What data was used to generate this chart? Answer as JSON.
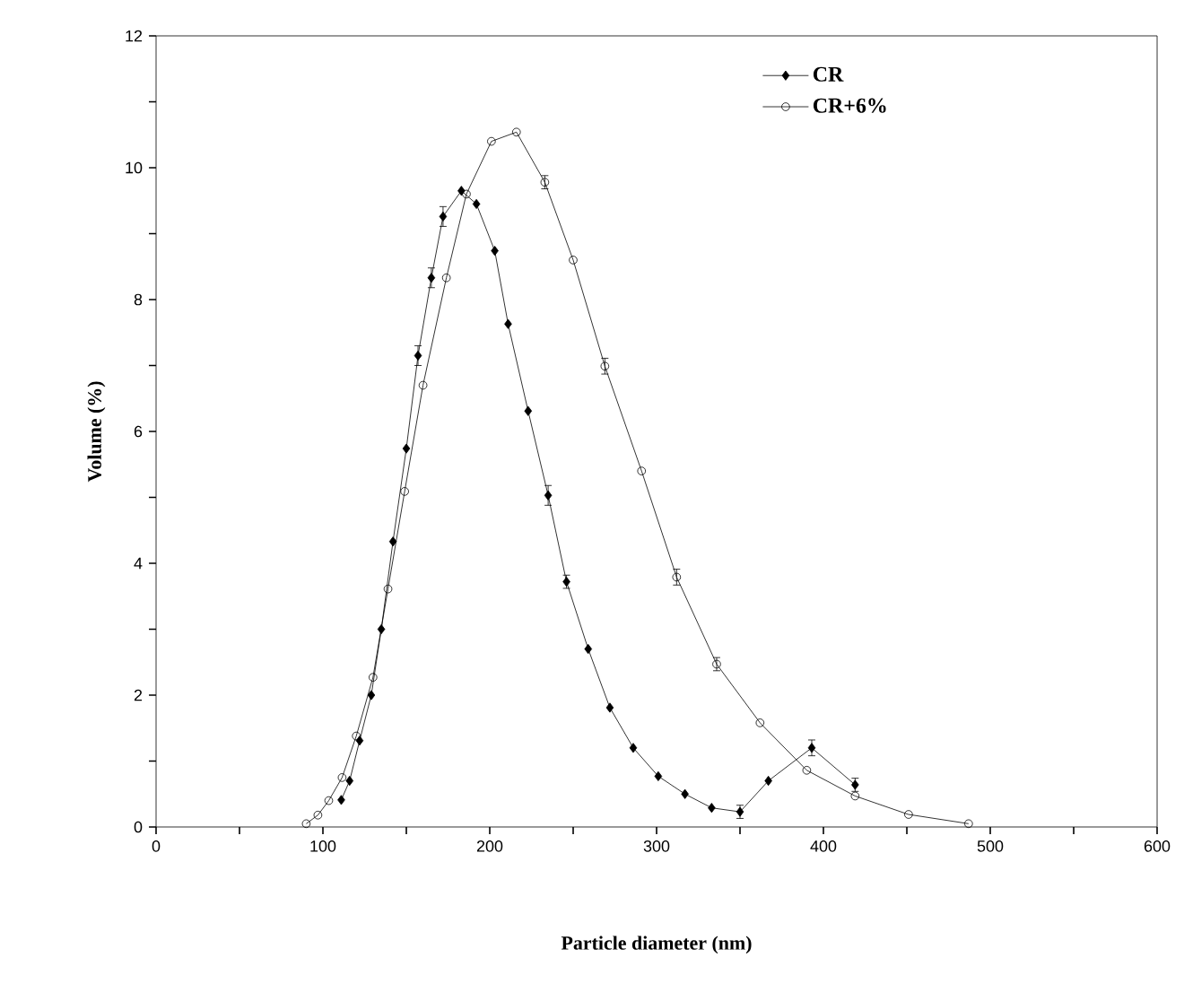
{
  "chart_data": {
    "type": "line",
    "xlabel": "Particle diameter (nm)",
    "ylabel": "Volume (%)",
    "xlim": [
      0,
      600
    ],
    "ylim": [
      0,
      12
    ],
    "xticks": [
      0,
      {
        "value": 50,
        "label": null
      },
      100,
      {
        "value": 150,
        "label": null
      },
      200,
      {
        "value": 250,
        "label": null
      },
      300,
      {
        "value": 350,
        "label": null
      },
      400,
      {
        "value": 450,
        "label": null
      },
      500,
      {
        "value": 550,
        "label": null
      },
      600
    ],
    "yticks": [
      0,
      {
        "value": 1,
        "label": null
      },
      2,
      {
        "value": 3,
        "label": null
      },
      4,
      {
        "value": 5,
        "label": null
      },
      6,
      {
        "value": 7,
        "label": null
      },
      8,
      {
        "value": 9,
        "label": null
      },
      10,
      {
        "value": 11,
        "label": null
      },
      12
    ],
    "grid": false,
    "legend": "top right",
    "line_style": "solid",
    "series": [
      {
        "name": "CR",
        "color": "#000000",
        "marker": "diamond",
        "x": [
          111,
          116,
          122,
          129,
          135,
          142,
          150,
          157,
          165,
          172,
          183,
          192,
          203,
          211,
          223,
          235,
          246,
          259,
          272,
          286,
          301,
          317,
          333,
          350,
          367,
          393,
          419
        ],
        "values": [
          0.41,
          0.7,
          1.31,
          2.0,
          3.0,
          4.33,
          5.74,
          7.15,
          8.33,
          9.26,
          9.65,
          9.45,
          8.74,
          7.63,
          6.31,
          5.03,
          3.72,
          2.7,
          1.81,
          1.2,
          0.77,
          0.5,
          0.29,
          0.23,
          0.7,
          1.2,
          0.64
        ],
        "errors": [
          null,
          null,
          null,
          null,
          null,
          null,
          null,
          0.15,
          0.15,
          0.15,
          null,
          null,
          null,
          null,
          null,
          0.15,
          0.1,
          null,
          null,
          null,
          null,
          null,
          null,
          0.1,
          null,
          0.12,
          0.1
        ]
      },
      {
        "name": "CR+6%",
        "color": "#000000",
        "marker": "circle",
        "x": [
          90,
          97,
          103.5,
          111.5,
          120,
          130,
          139,
          149,
          160,
          174,
          186,
          201,
          216,
          233,
          250,
          269,
          291,
          312,
          336,
          362,
          390,
          419,
          451,
          487
        ],
        "values": [
          0.05,
          0.18,
          0.4,
          0.75,
          1.38,
          2.27,
          3.61,
          5.09,
          6.7,
          8.33,
          9.6,
          10.4,
          10.54,
          9.78,
          8.6,
          6.99,
          5.4,
          3.79,
          2.47,
          1.58,
          0.86,
          0.47,
          0.19,
          0.05
        ],
        "errors": [
          null,
          null,
          null,
          null,
          null,
          null,
          null,
          null,
          null,
          null,
          null,
          null,
          null,
          0.1,
          null,
          0.12,
          null,
          0.12,
          0.1,
          null,
          null,
          null,
          null,
          null
        ]
      }
    ]
  }
}
